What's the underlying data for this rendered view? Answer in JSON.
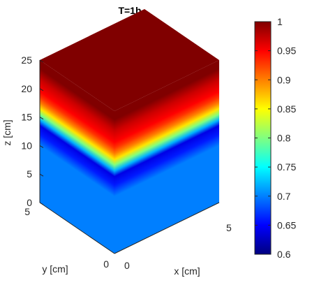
{
  "chart_data": {
    "type": "heatmap",
    "title": "T=1h",
    "xlabel": "x [cm]",
    "ylabel": "y [cm]",
    "zlabel": "z [cm]",
    "xlim": [
      0,
      5
    ],
    "ylim": [
      0,
      5
    ],
    "zlim": [
      0,
      25
    ],
    "x_ticks": [
      "0",
      "5"
    ],
    "y_ticks": [
      "0",
      "5"
    ],
    "z_ticks": [
      "0",
      "5",
      "10",
      "15",
      "20",
      "25"
    ],
    "colorbar": {
      "min": 0.6,
      "max": 1,
      "colormap": "jet",
      "ticks": [
        "0.6",
        "0.65",
        "0.7",
        "0.75",
        "0.8",
        "0.85",
        "0.9",
        "0.95",
        "1"
      ]
    },
    "profile": {
      "z": [
        0,
        10,
        12,
        13.5,
        14.5,
        15.5,
        16.5,
        17.5,
        18.5,
        19.5,
        20.5,
        21.5,
        22.5,
        23.5,
        25
      ],
      "value": [
        0.7,
        0.7,
        0.66,
        0.64,
        0.72,
        0.8,
        0.86,
        0.9,
        0.93,
        0.95,
        0.96,
        0.97,
        0.985,
        1.0,
        1.0
      ]
    },
    "top_value": 1.0
  }
}
